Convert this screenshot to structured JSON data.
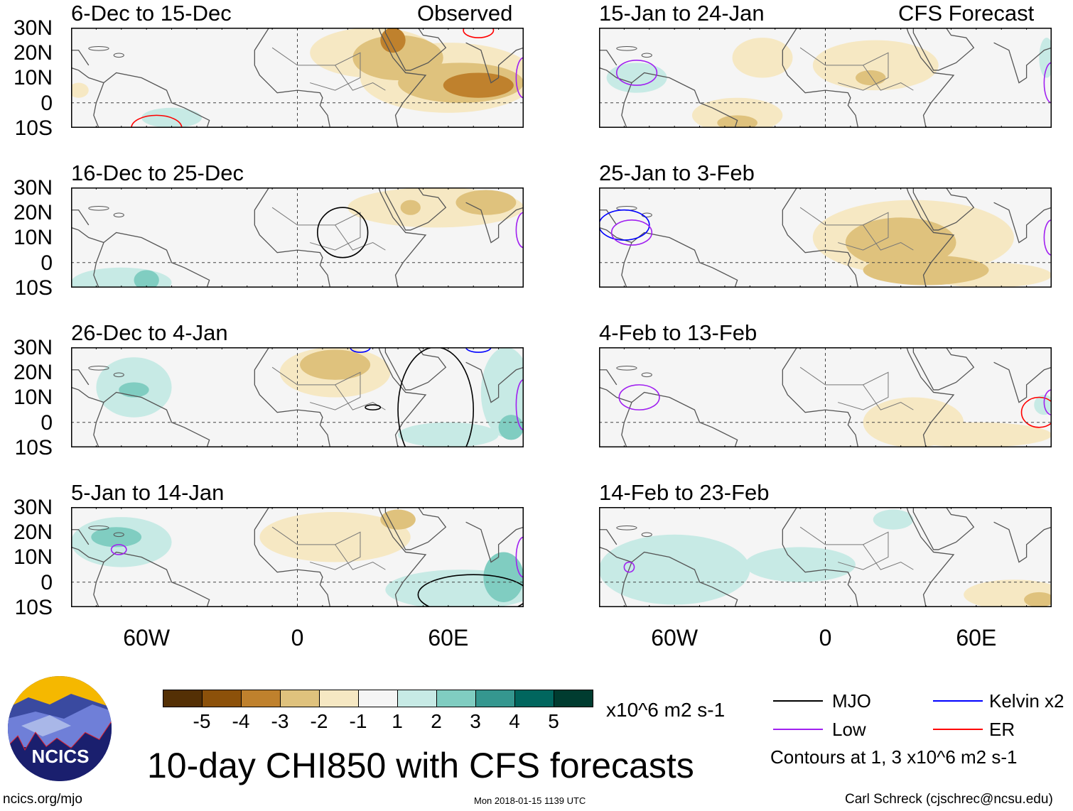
{
  "figure": {
    "title": "10-day CHI850 with CFS forecasts",
    "left_header": "Observed",
    "right_header": "CFS Forecast",
    "footer_left": "ncics.org/mjo",
    "footer_center": "Mon 2018-01-15 1139 UTC",
    "footer_right": "Carl Schreck (cjschrec@ncsu.edu)",
    "logo_text": "NCICS"
  },
  "axes": {
    "lat_labels": [
      "30N",
      "20N",
      "10N",
      "0",
      "10S"
    ],
    "lon_labels": [
      "60W",
      "0",
      "60E"
    ]
  },
  "colorbar": {
    "unit": "x10^6 m2 s-1",
    "colors": [
      "#543005",
      "#8c510a",
      "#bf812d",
      "#dfc27d",
      "#f6e8c3",
      "#f5f5f5",
      "#c7eae5",
      "#80cdc1",
      "#35978f",
      "#01665e",
      "#003c30"
    ],
    "labels": [
      "-5",
      "-4",
      "-3",
      "-2",
      "-1",
      "1",
      "2",
      "3",
      "4",
      "5"
    ]
  },
  "legend": {
    "items": [
      {
        "label": "MJO",
        "color": "#000000"
      },
      {
        "label": "Kelvin x2",
        "color": "#0000ff"
      },
      {
        "label": "Low",
        "color": "#a020f0"
      },
      {
        "label": "ER",
        "color": "#ff0000"
      }
    ],
    "note": "Contours at 1, 3 x10^6 m2 s-1"
  },
  "chart_data": {
    "type": "map",
    "lon_range": [
      -90,
      90
    ],
    "lat_range": [
      -10,
      30
    ],
    "panels": [
      {
        "title": "6-Dec to 15-Dec",
        "blobs": [
          [
            30,
            20,
            25,
            10,
            -1
          ],
          [
            60,
            10,
            35,
            14,
            -1
          ],
          [
            40,
            18,
            18,
            9,
            -2
          ],
          [
            65,
            8,
            25,
            8,
            -2
          ],
          [
            72,
            7,
            14,
            5,
            -3
          ],
          [
            38,
            25,
            5,
            5,
            -3
          ],
          [
            -50,
            -6,
            12,
            4,
            1
          ],
          [
            -87,
            5,
            4,
            3,
            -1
          ]
        ],
        "contours": [
          [
            "ER",
            -56,
            -10,
            10,
            5
          ],
          [
            "ER",
            72,
            29,
            6,
            3
          ],
          [
            "Low",
            90,
            10,
            3,
            8
          ]
        ]
      },
      {
        "title": "16-Dec to 25-Dec",
        "blobs": [
          [
            55,
            22,
            35,
            8,
            -1
          ],
          [
            75,
            24,
            12,
            5,
            -2
          ],
          [
            45,
            22,
            4,
            3,
            -2
          ],
          [
            -70,
            -8,
            20,
            6,
            1
          ],
          [
            -60,
            -7,
            5,
            4,
            2
          ]
        ],
        "contours": [
          [
            "MJO",
            18,
            12,
            10,
            10
          ],
          [
            "Low",
            90,
            13,
            3,
            7
          ]
        ]
      },
      {
        "title": "26-Dec to 4-Jan",
        "blobs": [
          [
            15,
            20,
            22,
            10,
            -1
          ],
          [
            15,
            23,
            14,
            6,
            -2
          ],
          [
            -65,
            14,
            15,
            12,
            1
          ],
          [
            -65,
            13,
            6,
            3,
            2
          ],
          [
            83,
            12,
            10,
            18,
            1
          ],
          [
            60,
            -5,
            20,
            5,
            1
          ],
          [
            85,
            -2,
            5,
            5,
            2
          ]
        ],
        "contours": [
          [
            "MJO",
            55,
            5,
            15,
            25
          ],
          [
            "MJO",
            30,
            6,
            3,
            1
          ],
          [
            "Kelvin",
            25,
            30,
            4,
            2
          ],
          [
            "Kelvin",
            72,
            30,
            5,
            2
          ],
          [
            "Low",
            90,
            7,
            3,
            10
          ]
        ]
      },
      {
        "title": "5-Jan to 14-Jan",
        "blobs": [
          [
            -70,
            16,
            20,
            10,
            1
          ],
          [
            -72,
            18,
            10,
            4,
            2
          ],
          [
            15,
            18,
            30,
            10,
            -1
          ],
          [
            40,
            25,
            7,
            4,
            -2
          ],
          [
            65,
            -3,
            30,
            8,
            1
          ],
          [
            82,
            2,
            8,
            10,
            2
          ]
        ],
        "contours": [
          [
            "MJO",
            70,
            -5,
            22,
            8
          ],
          [
            "Low",
            -71,
            13,
            3,
            2
          ],
          [
            "Low",
            90,
            10,
            3,
            8
          ]
        ]
      },
      {
        "title": "15-Jan to 24-Jan",
        "blobs": [
          [
            -75,
            10,
            12,
            6,
            1
          ],
          [
            -35,
            -5,
            18,
            7,
            -1
          ],
          [
            -35,
            -8,
            8,
            3,
            -2
          ],
          [
            -25,
            18,
            12,
            8,
            -1
          ],
          [
            20,
            15,
            25,
            10,
            -1
          ],
          [
            18,
            10,
            6,
            3,
            -2
          ],
          [
            88,
            18,
            3,
            8,
            1
          ]
        ],
        "contours": [
          [
            "Low",
            -75,
            12,
            8,
            5
          ],
          [
            "Low",
            90,
            8,
            3,
            8
          ]
        ]
      },
      {
        "title": "25-Jan to 3-Feb",
        "blobs": [
          [
            35,
            10,
            40,
            15,
            -1
          ],
          [
            30,
            8,
            22,
            10,
            -2
          ],
          [
            40,
            -3,
            25,
            6,
            -2
          ],
          [
            65,
            -5,
            25,
            5,
            -1
          ]
        ],
        "contours": [
          [
            "Kelvin",
            -80,
            15,
            10,
            6
          ],
          [
            "Low",
            -77,
            12,
            8,
            5
          ],
          [
            "Low",
            90,
            10,
            3,
            7
          ]
        ]
      },
      {
        "title": "4-Feb to 13-Feb",
        "blobs": [
          [
            35,
            0,
            20,
            10,
            -1
          ],
          [
            60,
            -5,
            30,
            5,
            -1
          ],
          [
            87,
            7,
            4,
            4,
            1
          ]
        ],
        "contours": [
          [
            "Low",
            -74,
            10,
            8,
            5
          ],
          [
            "ER",
            85,
            4,
            7,
            6
          ],
          [
            "Low",
            90,
            8,
            3,
            5
          ]
        ]
      },
      {
        "title": "14-Feb to 23-Feb",
        "blobs": [
          [
            -60,
            5,
            30,
            14,
            1
          ],
          [
            -10,
            7,
            22,
            7,
            1
          ],
          [
            27,
            25,
            8,
            4,
            1
          ],
          [
            75,
            -5,
            20,
            6,
            -1
          ],
          [
            85,
            -7,
            6,
            3,
            -2
          ]
        ],
        "contours": [
          [
            "Low",
            -78,
            6,
            2,
            2
          ]
        ]
      }
    ]
  }
}
